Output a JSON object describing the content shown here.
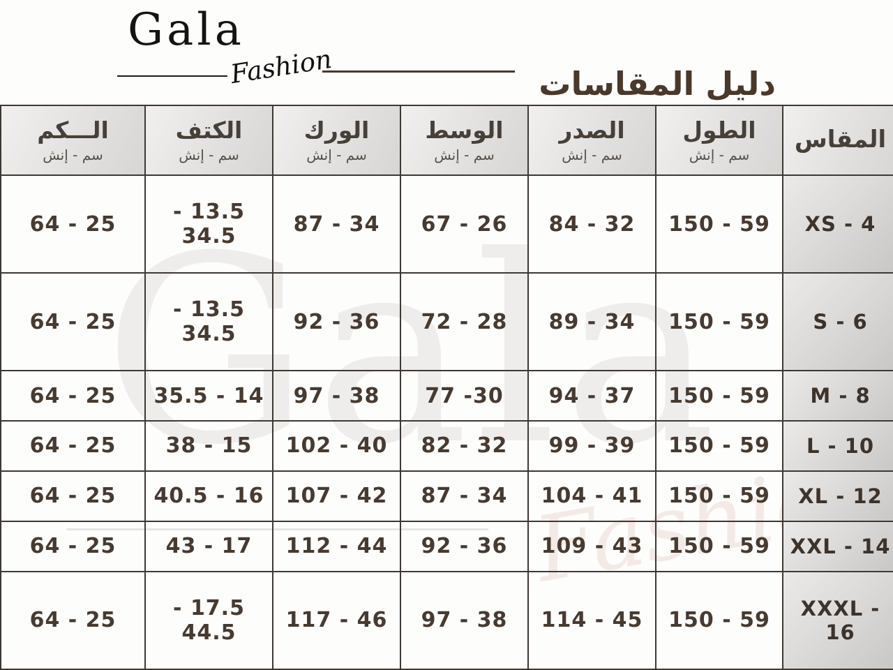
{
  "brand": {
    "name": "Gala",
    "tagline": "Fashion"
  },
  "header": {
    "title": "دليل المقاسات"
  },
  "watermark": {
    "name": "Gala",
    "tagline": "Fashion"
  },
  "table": {
    "columns": [
      {
        "key": "size",
        "label": "المقاس",
        "unit": ""
      },
      {
        "key": "length",
        "label": "الطول",
        "unit": "سم - إنش"
      },
      {
        "key": "chest",
        "label": "الصدر",
        "unit": "سم - إنش"
      },
      {
        "key": "waist",
        "label": "الوسط",
        "unit": "سم - إنش"
      },
      {
        "key": "hip",
        "label": "الورك",
        "unit": "سم - إنش"
      },
      {
        "key": "shoulder",
        "label": "الكتف",
        "unit": "سم - إنش"
      },
      {
        "key": "sleeve",
        "label": "الـــكم",
        "unit": "سم - إنش"
      }
    ],
    "rows": [
      {
        "size": "XS - 4",
        "length": "59 - 150",
        "chest": "32 - 84",
        "waist": "26 - 67",
        "hip": "34 - 87",
        "shoulder": "13.5 - 34.5",
        "sleeve": "25 - 64"
      },
      {
        "size": "S - 6",
        "length": "59 - 150",
        "chest": "34 - 89",
        "waist": "28 - 72",
        "hip": "36 - 92",
        "shoulder": "13.5 - 34.5",
        "sleeve": "25 - 64"
      },
      {
        "size": "M - 8",
        "length": "59 - 150",
        "chest": "37 - 94",
        "waist": "30- 77",
        "hip": "38 - 97",
        "shoulder": "14 - 35.5",
        "sleeve": "25 - 64"
      },
      {
        "size": "L - 10",
        "length": "59 - 150",
        "chest": "39 - 99",
        "waist": "32 - 82",
        "hip": "40 - 102",
        "shoulder": "15 - 38",
        "sleeve": "25 - 64"
      },
      {
        "size": "XL - 12",
        "length": "59 - 150",
        "chest": "41 - 104",
        "waist": "34 - 87",
        "hip": "42 - 107",
        "shoulder": "16 - 40.5",
        "sleeve": "25 - 64"
      },
      {
        "size": "XXL - 14",
        "length": "59 - 150",
        "chest": "43 - 109",
        "waist": "36 - 92",
        "hip": "44 - 112",
        "shoulder": "17 - 43",
        "sleeve": "25 - 64"
      },
      {
        "size": "XXXL - 16",
        "length": "59 - 150",
        "chest": "45 - 114",
        "waist": "38 - 97",
        "hip": "46 - 117",
        "shoulder": "17.5 - 44.5",
        "sleeve": "25 - 64"
      }
    ]
  },
  "chart_data": {
    "type": "table",
    "title": "دليل المقاسات",
    "unit_note": "سم - إنش",
    "columns_rtl": [
      "المقاس",
      "الطول",
      "الصدر",
      "الوسط",
      "الورك",
      "الكتف",
      "الـــكم"
    ],
    "rows": [
      [
        "XS - 4",
        "59 - 150",
        "32 - 84",
        "26 - 67",
        "34 - 87",
        "13.5 - 34.5",
        "25 - 64"
      ],
      [
        "S - 6",
        "59 - 150",
        "34 - 89",
        "28 - 72",
        "36 - 92",
        "13.5 - 34.5",
        "25 - 64"
      ],
      [
        "M - 8",
        "59 - 150",
        "37 - 94",
        "30- 77",
        "38 - 97",
        "14 - 35.5",
        "25 - 64"
      ],
      [
        "L - 10",
        "59 - 150",
        "39 - 99",
        "32 - 82",
        "40 - 102",
        "15 - 38",
        "25 - 64"
      ],
      [
        "XL - 12",
        "59 - 150",
        "41 - 104",
        "34 - 87",
        "42 - 107",
        "16 - 40.5",
        "25 - 64"
      ],
      [
        "XXL - 14",
        "59 - 150",
        "43 - 109",
        "36 - 92",
        "44 - 112",
        "17 - 43",
        "25 - 64"
      ],
      [
        "XXXL - 16",
        "59 - 150",
        "45 - 114",
        "38 - 97",
        "46 - 117",
        "17.5 - 44.5",
        "25 - 64"
      ]
    ]
  },
  "colors": {
    "title_text": "#4a382a",
    "cell_text": "#473a30",
    "table_border": "#3e3833",
    "header_bg": "#e3e1df",
    "size_col_bg": "#d6d4d2",
    "watermark": "#eeedec",
    "background": "#fdfdfc"
  }
}
